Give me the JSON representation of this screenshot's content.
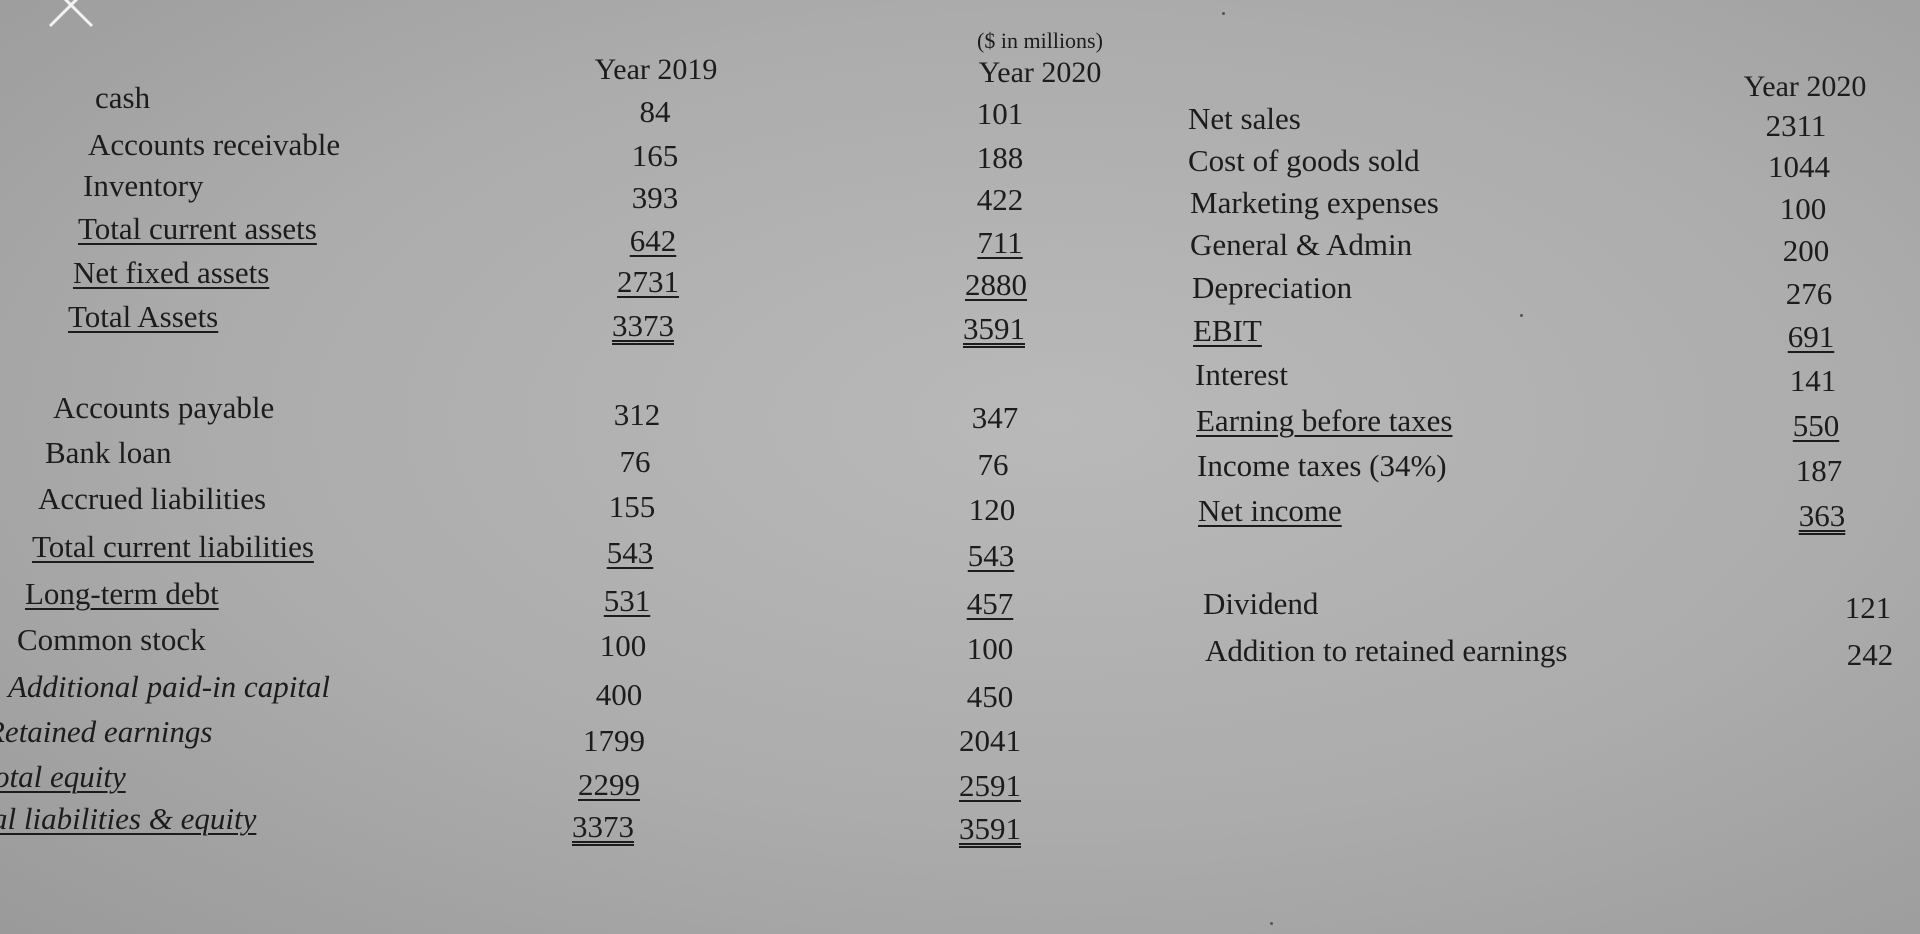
{
  "ui": {
    "close_icon": "close-icon"
  },
  "header": {
    "units": "($ in millions)",
    "col_2019": "Year 2019",
    "col_2020": "Year 2020",
    "income_col_2020": "Year 2020"
  },
  "balance_sheet": {
    "assets": [
      {
        "label": "cash",
        "y2019": "84",
        "y2020": "101"
      },
      {
        "label": "Accounts receivable",
        "y2019": "165",
        "y2020": "188"
      },
      {
        "label": "Inventory",
        "y2019": "393",
        "y2020": "422"
      },
      {
        "label": "Total current assets",
        "y2019": "642",
        "y2020": "711"
      },
      {
        "label": "Net fixed assets",
        "y2019": "2731",
        "y2020": "2880"
      },
      {
        "label": "Total Assets",
        "y2019": "3373",
        "y2020": "3591"
      }
    ],
    "liabilities": [
      {
        "label": "Accounts payable",
        "y2019": "312",
        "y2020": "347"
      },
      {
        "label": "Bank loan",
        "y2019": "76",
        "y2020": "76"
      },
      {
        "label": "Accrued liabilities",
        "y2019": "155",
        "y2020": "120"
      },
      {
        "label": "Total current liabilities",
        "y2019": "543",
        "y2020": "543"
      },
      {
        "label": "Long-term debt",
        "y2019": "531",
        "y2020": "457"
      },
      {
        "label": "Common stock",
        "y2019": "100",
        "y2020": "100"
      },
      {
        "label": "Additional paid-in capital",
        "y2019": "400",
        "y2020": "450"
      },
      {
        "label": "Retained earnings",
        "y2019": "1799",
        "y2020": "2041"
      },
      {
        "label": "otal equity",
        "y2019": "2299",
        "y2020": "2591"
      },
      {
        "label": "al liabilities & equity",
        "y2019": "3373",
        "y2020": "3591"
      }
    ]
  },
  "income_statement": {
    "rows": [
      {
        "label": "Net sales",
        "value": "2311"
      },
      {
        "label": "Cost of goods sold",
        "value": "1044"
      },
      {
        "label": "Marketing expenses",
        "value": "100"
      },
      {
        "label": "General & Admin",
        "value": "200"
      },
      {
        "label": "Depreciation",
        "value": "276"
      },
      {
        "label": "EBIT",
        "value": "691"
      },
      {
        "label": "Interest",
        "value": "141"
      },
      {
        "label": "Earning before taxes",
        "value": "550"
      },
      {
        "label": "Income taxes (34%)",
        "value": "187"
      },
      {
        "label": "Net income",
        "value": "363"
      }
    ],
    "extra": [
      {
        "label": "Dividend",
        "value": "121"
      },
      {
        "label": "Addition to retained earnings",
        "value": "242"
      }
    ]
  }
}
